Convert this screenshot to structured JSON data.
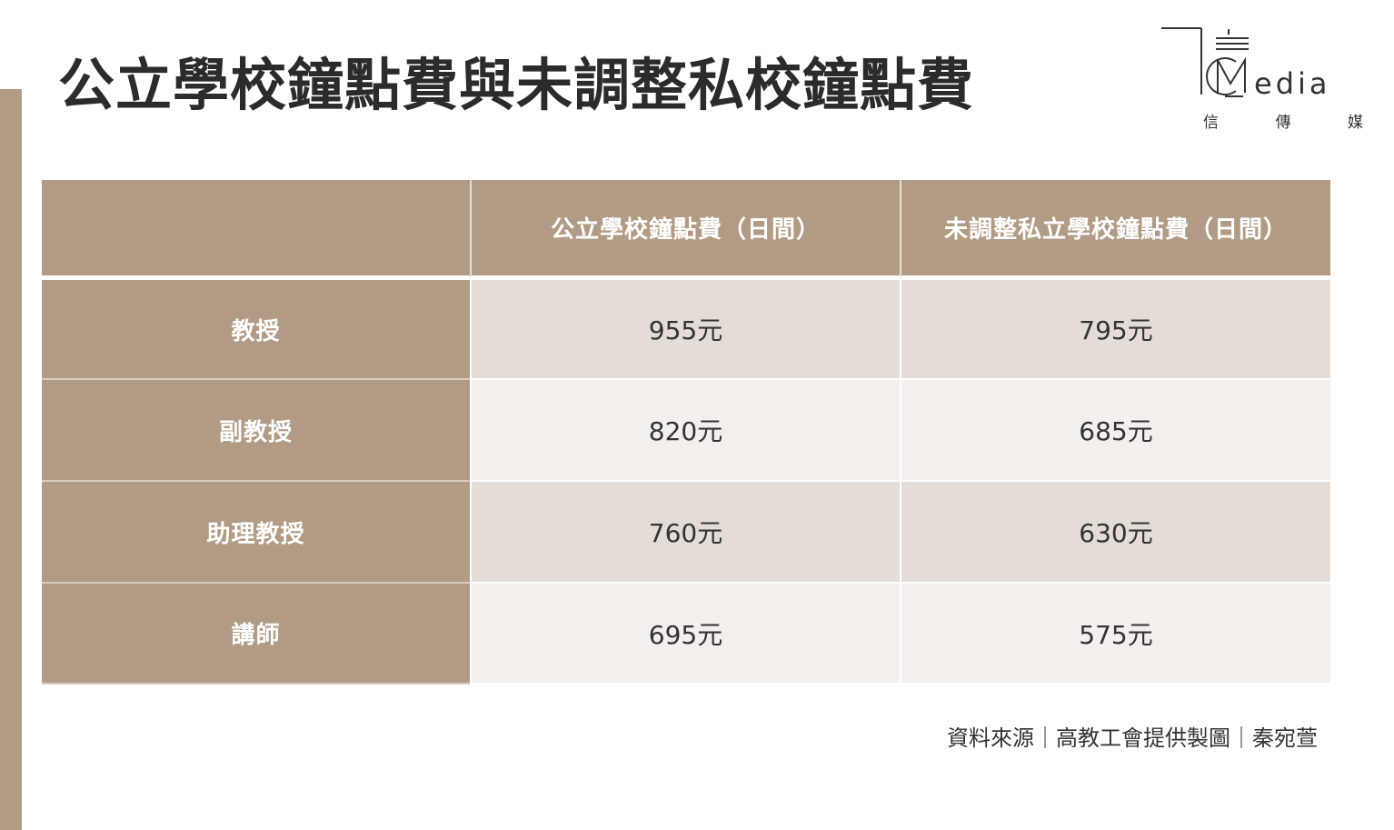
{
  "title": "公立學校鐘點費與未調整私校鐘點費",
  "logo": {
    "wordmark": "edia",
    "subtitle": [
      "信",
      "傳",
      "媒"
    ]
  },
  "colors": {
    "header_bg": "#b29b84",
    "row_dark": "#e4ddd7",
    "row_light": "#f2efec",
    "accent_bar": "#b29b84"
  },
  "chart_data": {
    "type": "table",
    "title": "公立學校鐘點費與未調整私校鐘點費",
    "columns": [
      "",
      "公立學校鐘點費（日間）",
      "未調整私立學校鐘點費（日間）"
    ],
    "rows": [
      {
        "label": "教授",
        "values": [
          "955元",
          "795元"
        ]
      },
      {
        "label": "副教授",
        "values": [
          "820元",
          "685元"
        ]
      },
      {
        "label": "助理教授",
        "values": [
          "760元",
          "630元"
        ]
      },
      {
        "label": "講師",
        "values": [
          "695元",
          "575元"
        ]
      }
    ]
  },
  "source": "資料來源｜高教工會提供製圖｜秦宛萱"
}
